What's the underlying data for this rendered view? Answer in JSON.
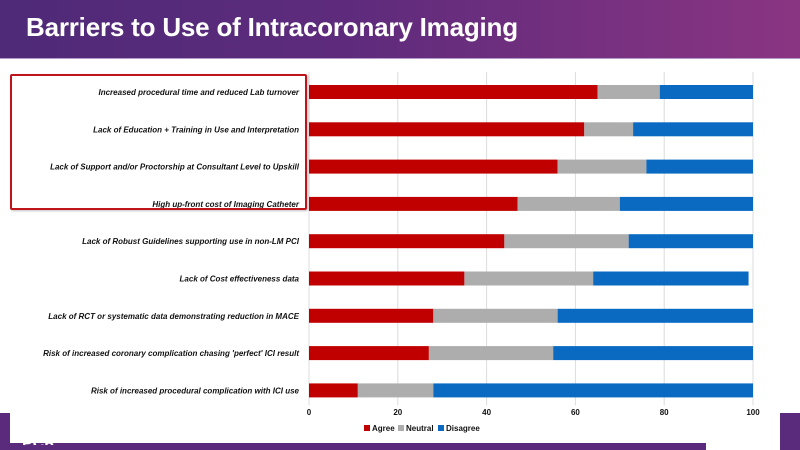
{
  "header": {
    "title": "Barriers to Use of Intracoronary Imaging"
  },
  "colors": {
    "agree": "#c00000",
    "neutral": "#adadad",
    "disagree": "#0a6ac2",
    "header_start": "#4e2a78",
    "header_end": "#8a3582",
    "highlight": "#c0141c"
  },
  "highlight": {
    "label": "highlighted-top-barriers",
    "categories_highlighted": 4
  },
  "footer": {
    "logo_text": "PCR"
  },
  "chart_data": {
    "type": "bar",
    "orientation": "horizontal",
    "stacked": true,
    "title": "",
    "xlabel": "",
    "ylabel": "",
    "xlim": [
      0,
      100
    ],
    "xticks": [
      0,
      20,
      40,
      60,
      80,
      100
    ],
    "grid": true,
    "legend_position": "bottom",
    "categories": [
      "Increased procedural time and reduced Lab turnover",
      "Lack of Education + Training in Use and Interpretation",
      "Lack of Support and/or Proctorship at Consultant Level to Upskill",
      "High up-front cost of Imaging Catheter",
      "Lack of Robust Guidelines supporting use in non-LM PCI",
      "Lack of Cost effectiveness data",
      "Lack of RCT or systematic data demonstrating reduction in MACE",
      "Risk of increased coronary complication chasing 'perfect' ICI result",
      "Risk of increased procedural complication with ICI use"
    ],
    "series": [
      {
        "name": "Agree",
        "values": [
          65,
          62,
          56,
          47,
          44,
          35,
          28,
          27,
          11
        ]
      },
      {
        "name": "Neutral",
        "values": [
          14,
          11,
          20,
          23,
          28,
          29,
          28,
          28,
          17
        ]
      },
      {
        "name": "Disagree",
        "values": [
          21,
          27,
          24,
          30,
          28,
          35,
          44,
          45,
          72
        ]
      }
    ]
  }
}
